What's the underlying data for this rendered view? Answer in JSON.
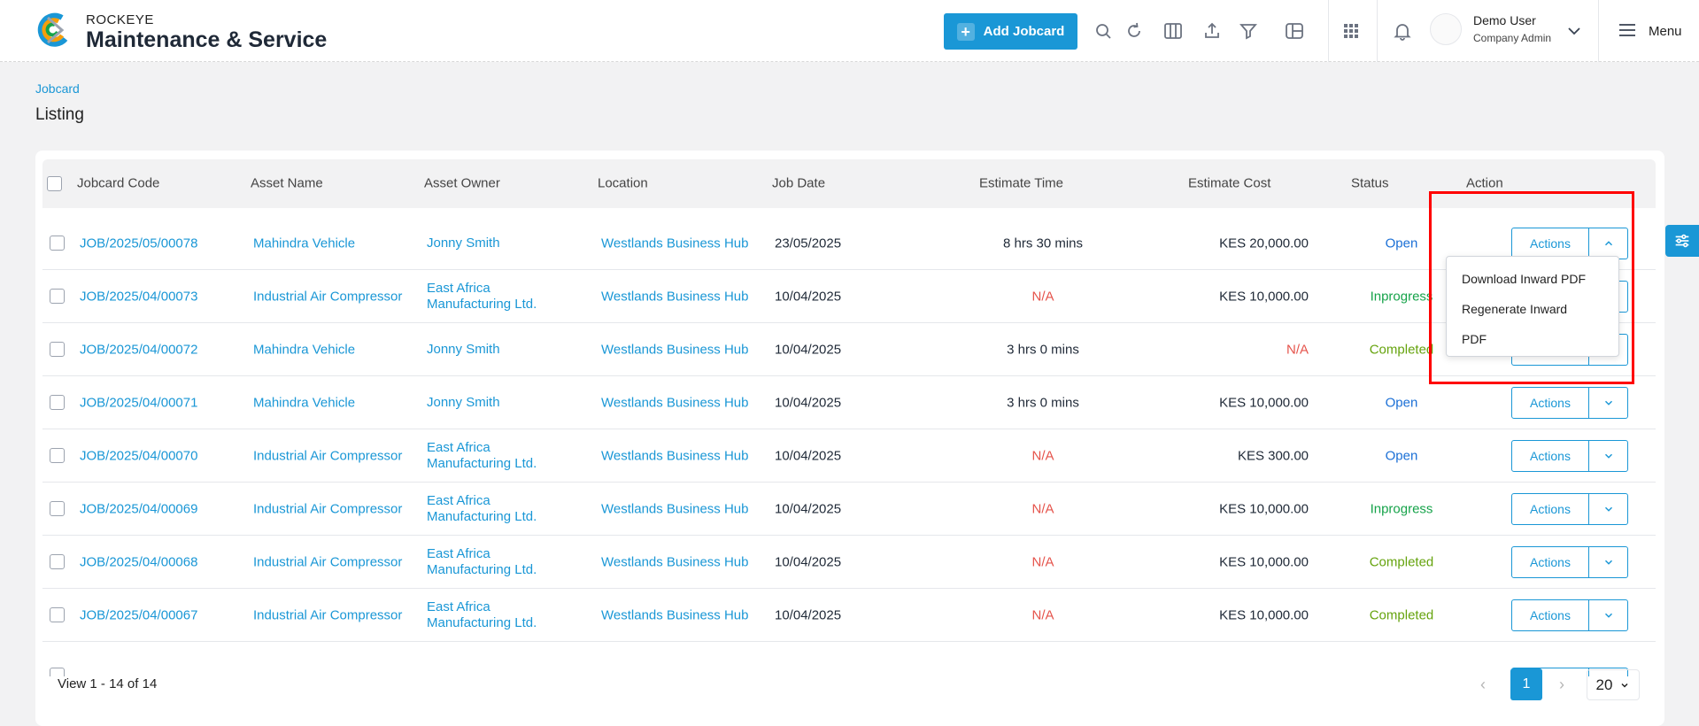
{
  "header": {
    "brand_top": "ROCKEYE",
    "brand_main": "Maintenance & Service",
    "add_button_label": "Add Jobcard",
    "user_name": "Demo User",
    "user_role": "Company Admin",
    "menu_label": "Menu",
    "icons": [
      "search-icon",
      "refresh-icon",
      "columns-icon",
      "export-icon",
      "filter-icon",
      "layout-icon",
      "apps-grid-icon",
      "bell-icon",
      "chevron-down-icon",
      "hamburger-icon"
    ]
  },
  "breadcrumb": "Jobcard",
  "page_title": "Listing",
  "table": {
    "columns": [
      "Jobcard Code",
      "Asset Name",
      "Asset Owner",
      "Location",
      "Job Date",
      "Estimate Time",
      "Estimate Cost",
      "Status",
      "Action"
    ],
    "rows": [
      {
        "code": "JOB/2025/05/00078",
        "asset": "Mahindra Vehicle",
        "owner": "Jonny Smith",
        "location": "Westlands Business Hub",
        "date": "23/05/2025",
        "time": "8 hrs 30 mins",
        "cost": "KES 20,000.00",
        "status": "Open"
      },
      {
        "code": "JOB/2025/04/00073",
        "asset": "Industrial Air Compressor",
        "owner": "East Africa Manufacturing Ltd.",
        "location": "Westlands Business Hub",
        "date": "10/04/2025",
        "time": "N/A",
        "cost": "KES 10,000.00",
        "status": "Inprogress"
      },
      {
        "code": "JOB/2025/04/00072",
        "asset": "Mahindra Vehicle",
        "owner": "Jonny Smith",
        "location": "Westlands Business Hub",
        "date": "10/04/2025",
        "time": "3 hrs 0 mins",
        "cost": "N/A",
        "status": "Completed"
      },
      {
        "code": "JOB/2025/04/00071",
        "asset": "Mahindra Vehicle",
        "owner": "Jonny Smith",
        "location": "Westlands Business Hub",
        "date": "10/04/2025",
        "time": "3 hrs 0 mins",
        "cost": "KES 10,000.00",
        "status": "Open"
      },
      {
        "code": "JOB/2025/04/00070",
        "asset": "Industrial Air Compressor",
        "owner": "East Africa Manufacturing Ltd.",
        "location": "Westlands Business Hub",
        "date": "10/04/2025",
        "time": "N/A",
        "cost": "KES 300.00",
        "status": "Open"
      },
      {
        "code": "JOB/2025/04/00069",
        "asset": "Industrial Air Compressor",
        "owner": "East Africa Manufacturing Ltd.",
        "location": "Westlands Business Hub",
        "date": "10/04/2025",
        "time": "N/A",
        "cost": "KES 10,000.00",
        "status": "Inprogress"
      },
      {
        "code": "JOB/2025/04/00068",
        "asset": "Industrial Air Compressor",
        "owner": "East Africa Manufacturing Ltd.",
        "location": "Westlands Business Hub",
        "date": "10/04/2025",
        "time": "N/A",
        "cost": "KES 10,000.00",
        "status": "Completed"
      },
      {
        "code": "JOB/2025/04/00067",
        "asset": "Industrial Air Compressor",
        "owner": "East Africa Manufacturing Ltd.",
        "location": "Westlands Business Hub",
        "date": "10/04/2025",
        "time": "N/A",
        "cost": "KES 10,000.00",
        "status": "Completed"
      }
    ],
    "actions_label": "Actions"
  },
  "dropdown": {
    "items": [
      "Download Inward PDF",
      "Regenerate Inward",
      "PDF"
    ]
  },
  "footer": {
    "info": "View 1 - 14 of 14",
    "current_page": "1",
    "page_size": "20"
  },
  "colors": {
    "accent": "#1a97d6",
    "na": "#e5534b",
    "open": "#1a6fd6",
    "inprogress": "#16a34a",
    "completed": "#65a30d",
    "highlight": "#ff0000"
  }
}
